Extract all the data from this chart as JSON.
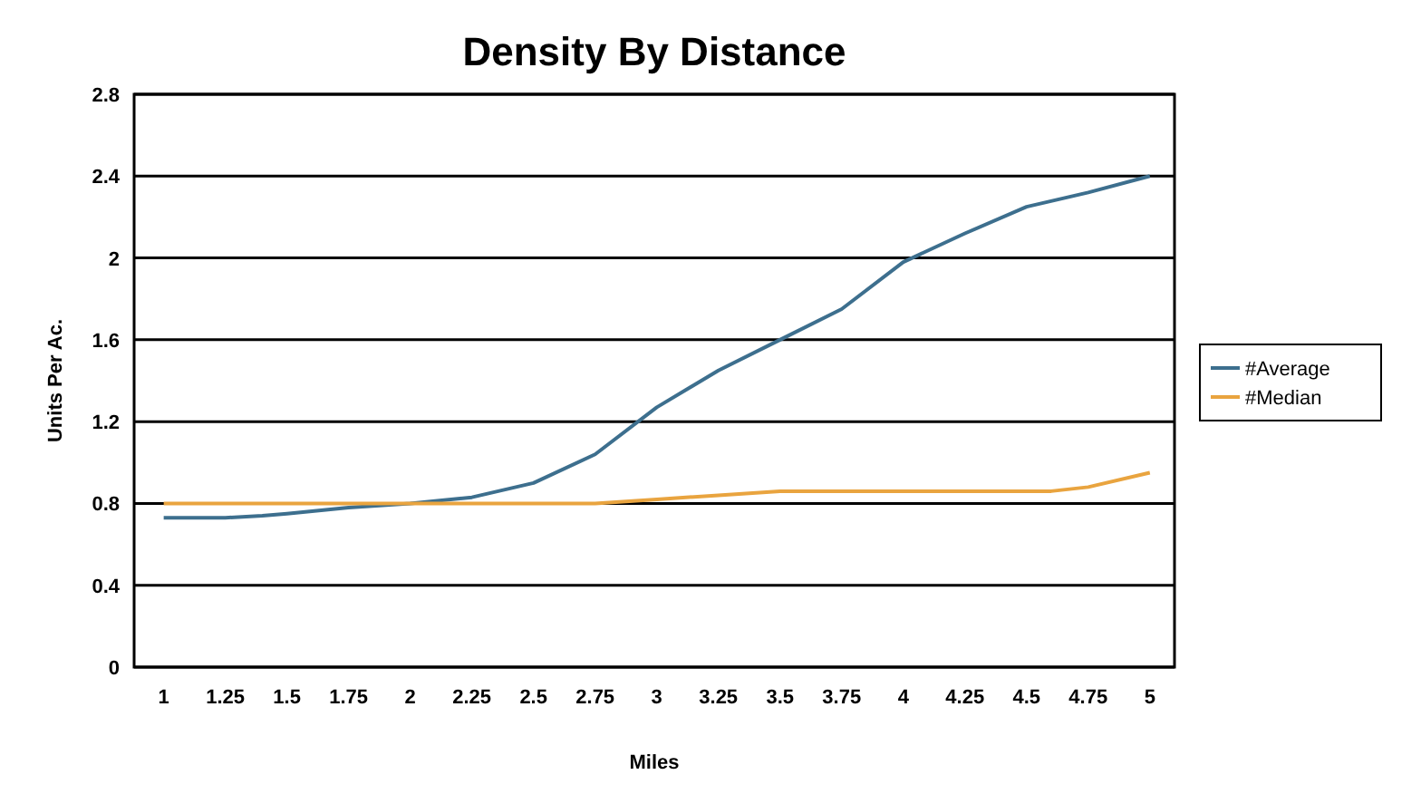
{
  "chart_data": {
    "type": "line",
    "title": "Density By Distance",
    "xlabel": "Miles",
    "ylabel": "Units Per Ac.",
    "xlim": [
      0.88,
      5.1
    ],
    "xticks": [
      1,
      1.25,
      1.5,
      1.75,
      2,
      2.25,
      2.5,
      2.75,
      3,
      3.25,
      3.5,
      3.75,
      4,
      4.25,
      4.5,
      4.75,
      5
    ],
    "ylim": [
      0,
      2.8
    ],
    "yticks": [
      0,
      0.4,
      0.8,
      1.2,
      1.6,
      2,
      2.4,
      2.8
    ],
    "grid": "y",
    "legend": "right",
    "marker": "none",
    "line_style": "solid",
    "series": [
      {
        "name": "#Average",
        "color": "#3d6f8e",
        "x": [
          1,
          1.25,
          1.4,
          1.5,
          1.75,
          2,
          2.25,
          2.5,
          2.75,
          3,
          3.25,
          3.5,
          3.75,
          4,
          4.25,
          4.5,
          4.75,
          5
        ],
        "values": [
          0.73,
          0.73,
          0.74,
          0.75,
          0.78,
          0.8,
          0.83,
          0.9,
          1.04,
          1.27,
          1.45,
          1.6,
          1.75,
          1.98,
          2.12,
          2.25,
          2.32,
          2.4
        ]
      },
      {
        "name": "#Median",
        "color": "#e9a43f",
        "x": [
          1,
          1.5,
          2,
          2.5,
          2.75,
          3,
          3.25,
          3.5,
          4,
          4.6,
          4.75,
          5
        ],
        "values": [
          0.8,
          0.8,
          0.8,
          0.8,
          0.8,
          0.82,
          0.84,
          0.86,
          0.86,
          0.86,
          0.88,
          0.95
        ]
      }
    ]
  }
}
